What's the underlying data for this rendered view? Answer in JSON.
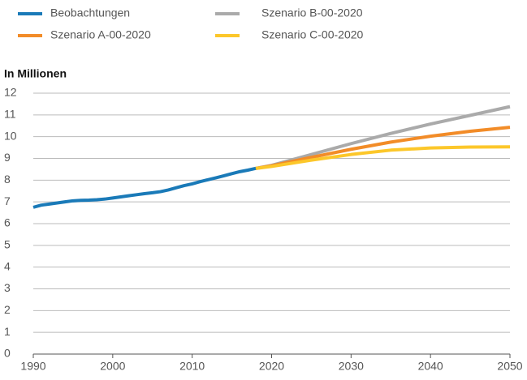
{
  "chart_data": {
    "type": "line",
    "ylabel": "In Millionen",
    "x": [
      1990,
      1991,
      1992,
      1993,
      1994,
      1995,
      1996,
      1997,
      1998,
      1999,
      2000,
      2001,
      2002,
      2003,
      2004,
      2005,
      2006,
      2007,
      2008,
      2009,
      2010,
      2011,
      2012,
      2013,
      2014,
      2015,
      2016,
      2017,
      2018,
      2020,
      2025,
      2030,
      2035,
      2040,
      2045,
      2050
    ],
    "series": [
      {
        "name": "Beobachtungen",
        "color": "#1a7ab8",
        "values": [
          6.75,
          6.85,
          6.9,
          6.95,
          7.0,
          7.05,
          7.07,
          7.08,
          7.1,
          7.13,
          7.18,
          7.23,
          7.28,
          7.33,
          7.38,
          7.42,
          7.47,
          7.55,
          7.65,
          7.75,
          7.83,
          7.93,
          8.02,
          8.11,
          8.2,
          8.3,
          8.39,
          8.46,
          8.54,
          null,
          null,
          null,
          null,
          null,
          null,
          null
        ]
      },
      {
        "name": "Szenario A-00-2020",
        "color": "#f28c28",
        "values": [
          null,
          null,
          null,
          null,
          null,
          null,
          null,
          null,
          null,
          null,
          null,
          null,
          null,
          null,
          null,
          null,
          null,
          null,
          null,
          null,
          null,
          null,
          null,
          null,
          null,
          null,
          null,
          null,
          8.54,
          8.66,
          9.05,
          9.42,
          9.75,
          10.02,
          10.25,
          10.43
        ]
      },
      {
        "name": "Szenario B-00-2020",
        "color": "#aaaaaa",
        "values": [
          null,
          null,
          null,
          null,
          null,
          null,
          null,
          null,
          null,
          null,
          null,
          null,
          null,
          null,
          null,
          null,
          null,
          null,
          null,
          null,
          null,
          null,
          null,
          null,
          null,
          null,
          null,
          null,
          8.54,
          8.68,
          9.18,
          9.68,
          10.15,
          10.58,
          10.98,
          11.38
        ]
      },
      {
        "name": "Szenario C-00-2020",
        "color": "#fcc72a",
        "values": [
          null,
          null,
          null,
          null,
          null,
          null,
          null,
          null,
          null,
          null,
          null,
          null,
          null,
          null,
          null,
          null,
          null,
          null,
          null,
          null,
          null,
          null,
          null,
          null,
          null,
          null,
          null,
          null,
          8.54,
          8.63,
          8.92,
          9.18,
          9.38,
          9.48,
          9.52,
          9.53
        ]
      }
    ],
    "xlim": [
      1990,
      2050
    ],
    "xticks": [
      1990,
      2000,
      2010,
      2020,
      2030,
      2040,
      2050
    ],
    "ylim": [
      0,
      12
    ],
    "yticks": [
      0,
      1,
      2,
      3,
      4,
      5,
      6,
      7,
      8,
      9,
      10,
      11,
      12
    ],
    "grid": true
  }
}
